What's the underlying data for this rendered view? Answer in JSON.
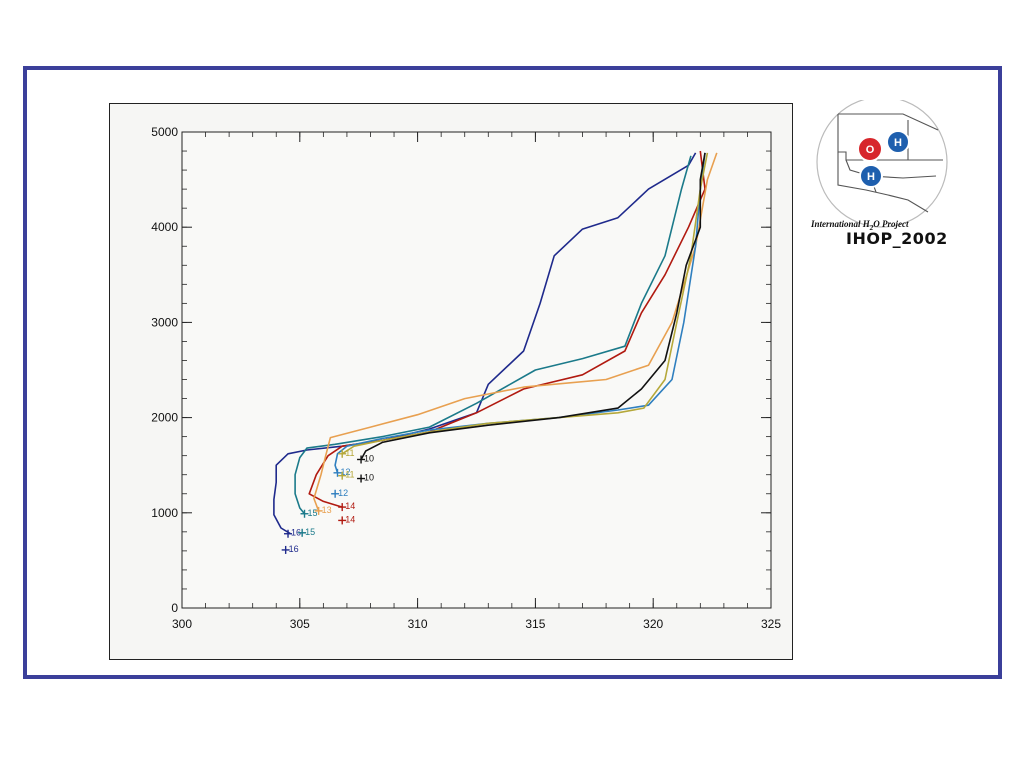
{
  "chart_data": {
    "type": "line",
    "title": "",
    "xlabel": "",
    "ylabel": "",
    "xlim": [
      300,
      325
    ],
    "ylim": [
      0,
      5000
    ],
    "x_ticks": [
      300,
      305,
      310,
      315,
      320,
      325
    ],
    "y_ticks": [
      0,
      1000,
      2000,
      3000,
      4000,
      5000
    ],
    "grid": false,
    "series": [
      {
        "label": "16",
        "color": "#1f2a8c",
        "points": [
          [
            304.6,
            780
          ],
          [
            304.2,
            840
          ],
          [
            303.9,
            980
          ],
          [
            303.9,
            1140
          ],
          [
            304.0,
            1320
          ],
          [
            304.0,
            1500
          ],
          [
            304.5,
            1620
          ],
          [
            305.3,
            1660
          ],
          [
            306.8,
            1700
          ],
          [
            308.5,
            1760
          ],
          [
            310.5,
            1880
          ],
          [
            312.5,
            2050
          ],
          [
            313.0,
            2350
          ],
          [
            314.5,
            2700
          ],
          [
            315.2,
            3200
          ],
          [
            315.8,
            3700
          ],
          [
            317.0,
            3980
          ],
          [
            318.5,
            4100
          ],
          [
            319.8,
            4400
          ],
          [
            321.5,
            4650
          ],
          [
            321.8,
            4780
          ]
        ],
        "marker": [
          304.5,
          780
        ],
        "marker2": [
          304.4,
          610
        ]
      },
      {
        "label": "15",
        "color": "#1b7a8a",
        "points": [
          [
            305.2,
            990
          ],
          [
            305.0,
            1050
          ],
          [
            304.8,
            1200
          ],
          [
            304.8,
            1400
          ],
          [
            305.0,
            1580
          ],
          [
            305.3,
            1680
          ],
          [
            306.5,
            1720
          ],
          [
            308.5,
            1800
          ],
          [
            310.5,
            1900
          ],
          [
            312.5,
            2150
          ],
          [
            315.0,
            2500
          ],
          [
            317.0,
            2620
          ],
          [
            318.8,
            2750
          ],
          [
            319.5,
            3200
          ],
          [
            320.5,
            3700
          ],
          [
            321.2,
            4400
          ],
          [
            321.6,
            4750
          ]
        ],
        "marker": [
          305.2,
          990
        ],
        "marker2": [
          305.1,
          790
        ]
      },
      {
        "label": "14",
        "color": "#b11a10",
        "points": [
          [
            306.8,
            1060
          ],
          [
            306.0,
            1120
          ],
          [
            305.4,
            1200
          ],
          [
            305.7,
            1400
          ],
          [
            306.2,
            1600
          ],
          [
            306.8,
            1700
          ],
          [
            308.5,
            1760
          ],
          [
            310.5,
            1850
          ],
          [
            312.5,
            2050
          ],
          [
            314.5,
            2300
          ],
          [
            317.0,
            2450
          ],
          [
            318.8,
            2700
          ],
          [
            319.5,
            3100
          ],
          [
            320.5,
            3500
          ],
          [
            321.5,
            4000
          ],
          [
            322.2,
            4400
          ],
          [
            322.0,
            4800
          ]
        ],
        "marker": [
          306.8,
          1060
        ],
        "marker2": [
          306.8,
          920
        ]
      },
      {
        "label": "13",
        "color": "#e8a050",
        "points": [
          [
            305.8,
            1020
          ],
          [
            305.6,
            1150
          ],
          [
            305.9,
            1400
          ],
          [
            306.1,
            1600
          ],
          [
            306.3,
            1790
          ],
          [
            308.0,
            1900
          ],
          [
            310.0,
            2030
          ],
          [
            312.0,
            2200
          ],
          [
            314.5,
            2320
          ],
          [
            318.0,
            2400
          ],
          [
            319.8,
            2550
          ],
          [
            320.8,
            3000
          ],
          [
            321.8,
            3800
          ],
          [
            322.3,
            4500
          ],
          [
            322.7,
            4780
          ]
        ],
        "marker": [
          305.8,
          1020
        ]
      },
      {
        "label": "12",
        "color": "#2f7fbf",
        "points": [
          [
            306.6,
            1420
          ],
          [
            306.5,
            1500
          ],
          [
            306.6,
            1620
          ],
          [
            307.0,
            1700
          ],
          [
            308.5,
            1780
          ],
          [
            310.5,
            1870
          ],
          [
            313.0,
            1940
          ],
          [
            316.0,
            2000
          ],
          [
            318.5,
            2080
          ],
          [
            319.8,
            2130
          ],
          [
            320.8,
            2400
          ],
          [
            321.3,
            3000
          ],
          [
            321.8,
            3800
          ],
          [
            322.0,
            4400
          ],
          [
            322.2,
            4780
          ]
        ],
        "marker": [
          306.6,
          1420
        ],
        "marker2": [
          306.5,
          1200
        ]
      },
      {
        "label": "11",
        "color": "#b5a83a",
        "points": [
          [
            306.8,
            1620
          ],
          [
            307.3,
            1700
          ],
          [
            308.5,
            1760
          ],
          [
            310.5,
            1850
          ],
          [
            313.0,
            1940
          ],
          [
            316.0,
            2000
          ],
          [
            318.5,
            2050
          ],
          [
            319.6,
            2100
          ],
          [
            320.5,
            2400
          ],
          [
            321.0,
            3000
          ],
          [
            321.6,
            3700
          ],
          [
            322.0,
            4400
          ],
          [
            322.3,
            4780
          ]
        ],
        "marker": [
          306.8,
          1620
        ],
        "marker2": [
          306.8,
          1390
        ]
      },
      {
        "label": "10",
        "color": "#111111",
        "points": [
          [
            307.6,
            1560
          ],
          [
            307.8,
            1650
          ],
          [
            308.5,
            1740
          ],
          [
            310.5,
            1840
          ],
          [
            313.0,
            1920
          ],
          [
            316.0,
            2000
          ],
          [
            318.5,
            2100
          ],
          [
            319.5,
            2300
          ],
          [
            320.5,
            2600
          ],
          [
            321.0,
            3100
          ],
          [
            321.4,
            3600
          ],
          [
            322.0,
            4000
          ],
          [
            322.0,
            4500
          ],
          [
            322.2,
            4780
          ]
        ],
        "marker": [
          307.6,
          1560
        ],
        "marker2": [
          307.6,
          1360
        ]
      }
    ]
  },
  "logo": {
    "caption_pre": "International H",
    "caption_sub": "2",
    "caption_post": "O Project",
    "name": "IHOP_2002",
    "atoms": [
      "O",
      "H",
      "H"
    ]
  }
}
